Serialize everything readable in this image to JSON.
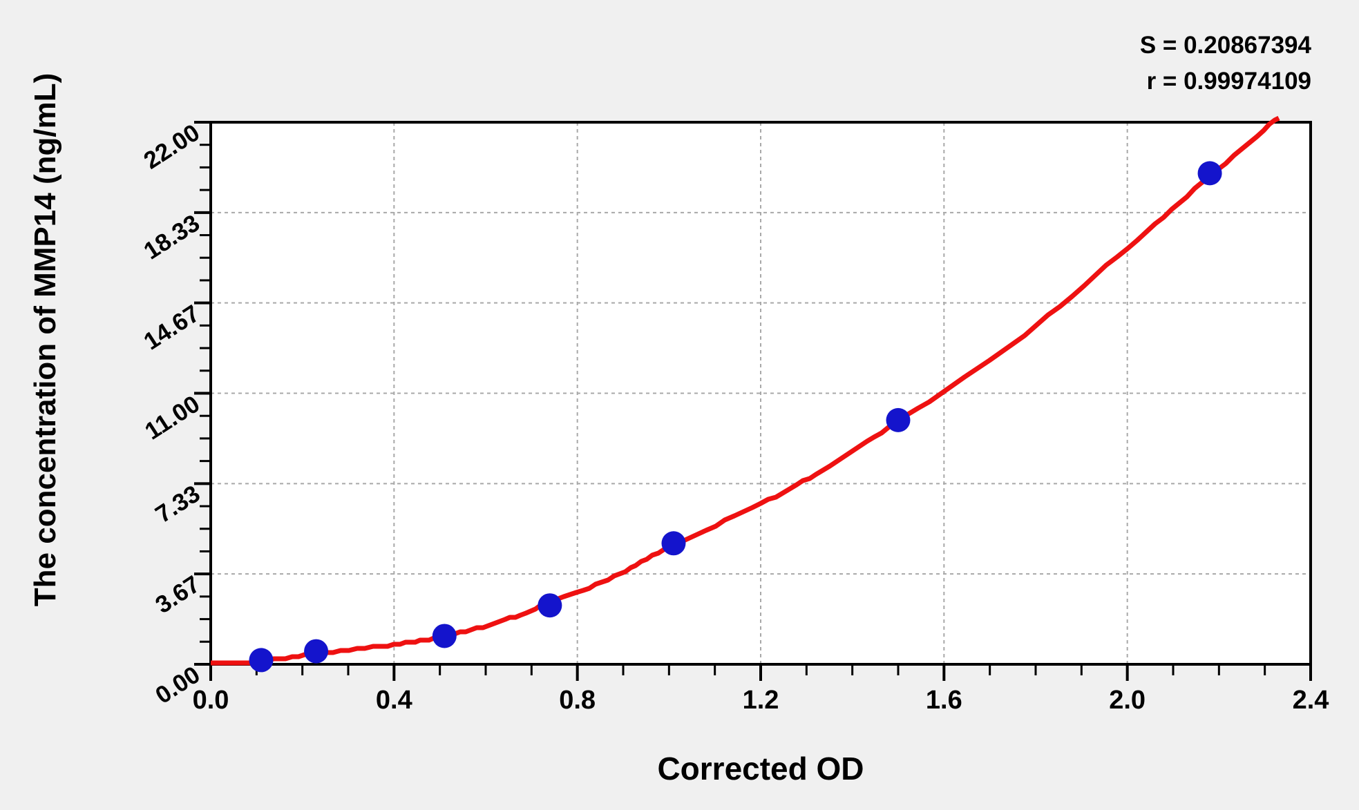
{
  "annotation": {
    "s_text": "S = 0.20867394",
    "r_text": "r = 0.99974109"
  },
  "chart_data": {
    "type": "scatter",
    "xlabel": "Corrected OD",
    "ylabel": "The concentration of MMP14 (ng/mL)",
    "points": {
      "x": [
        0.11,
        0.23,
        0.51,
        0.74,
        1.01,
        1.5,
        2.18
      ],
      "y": [
        0.17,
        0.53,
        1.15,
        2.39,
        4.91,
        9.91,
        19.93
      ]
    },
    "fit_curve": {
      "description": "red regression curve through standards",
      "anchors_x": [
        0.0,
        0.1,
        0.235,
        0.4,
        0.508,
        0.63,
        0.745,
        0.88,
        1.006,
        1.2,
        1.35,
        1.5,
        1.75,
        2.0,
        2.18,
        2.33
      ],
      "anchors_y": [
        0.07,
        0.11,
        0.43,
        0.8,
        1.13,
        1.72,
        2.55,
        3.55,
        4.82,
        6.5,
        8.05,
        9.85,
        13.0,
        16.9,
        19.8,
        22.2
      ]
    },
    "xlim": [
      0.0,
      2.4
    ],
    "ylim": [
      0.0,
      22.0
    ],
    "xticks": {
      "values": [
        0.0,
        0.4,
        0.8,
        1.2,
        1.6,
        2.0,
        2.4
      ],
      "labels": [
        "0.0",
        "0.4",
        "0.8",
        "1.2",
        "1.6",
        "2.0",
        "2.4"
      ],
      "minor_step": 0.1
    },
    "yticks": {
      "values": [
        0.0,
        3.6667,
        7.3333,
        11.0,
        14.6667,
        18.3333,
        22.0
      ],
      "labels": [
        "0.00",
        "3.67",
        "7.33",
        "11.00",
        "14.67",
        "18.33",
        "22.00"
      ],
      "minor_divisions": 4
    },
    "grid": {
      "show": true,
      "style": "dashed",
      "on_major_ticks": true
    },
    "legend": {
      "show": false
    },
    "colors": {
      "point": "#1414cc",
      "curve": "#ee1111",
      "grid": "#a8a8a8",
      "axis": "#000000",
      "plot_bg": "#ffffff",
      "page_bg": "#f0f0f0",
      "text": "#000000"
    }
  }
}
